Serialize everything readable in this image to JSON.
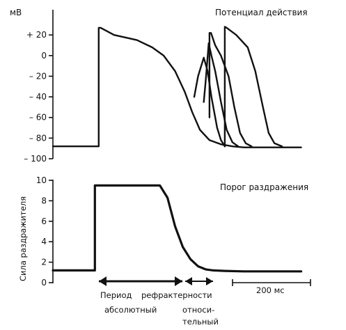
{
  "chart_data": [
    {
      "type": "line",
      "title": "Потенциал действия",
      "ylabel": "мВ",
      "ylim": [
        -100,
        35
      ],
      "yticks": [
        {
          "value": 20,
          "label": "+ 20"
        },
        {
          "value": 0,
          "label": "0"
        },
        {
          "value": -20,
          "label": "– 20"
        },
        {
          "value": -40,
          "label": "– 40"
        },
        {
          "value": -60,
          "label": "– 60"
        },
        {
          "value": -80,
          "label": "– 80"
        },
        {
          "value": -100,
          "label": "– 100"
        }
      ],
      "xlim": [
        0,
        700
      ],
      "grid": false,
      "series": [
        {
          "x": [
            0,
            120,
            120,
            125,
            160,
            220,
            260,
            290,
            320,
            345,
            365,
            385,
            410,
            440,
            470,
            500,
            560,
            650
          ],
          "y": [
            -88,
            -88,
            27,
            27,
            20,
            15,
            8,
            0,
            -15,
            -35,
            -55,
            -72,
            -82,
            -86,
            -88,
            -89,
            -89,
            -89
          ]
        },
        {
          "x": [
            370,
            380,
            395,
            405,
            415,
            430,
            440,
            450
          ],
          "y": [
            -40,
            -20,
            -2,
            -15,
            -40,
            -70,
            -82,
            -88
          ]
        },
        {
          "x": [
            395,
            400,
            408,
            415,
            425,
            440,
            455,
            470,
            485
          ],
          "y": [
            -45,
            -25,
            12,
            0,
            -15,
            -45,
            -72,
            -84,
            -88
          ]
        },
        {
          "x": [
            410,
            410,
            414,
            425,
            440,
            460,
            475,
            490,
            505,
            520
          ],
          "y": [
            -60,
            22,
            22,
            10,
            0,
            -20,
            -50,
            -75,
            -85,
            -88
          ]
        },
        {
          "x": [
            450,
            450,
            455,
            480,
            510,
            530,
            550,
            565,
            580,
            600
          ],
          "y": [
            -88,
            28,
            27,
            20,
            8,
            -15,
            -50,
            -75,
            -85,
            -88
          ]
        }
      ]
    },
    {
      "type": "line",
      "title": "Порог раздражения",
      "ylabel": "Сила раздражителя",
      "ylim": [
        0,
        10
      ],
      "yticks": [
        {
          "value": 10,
          "label": "10"
        },
        {
          "value": 8,
          "label": "8"
        },
        {
          "value": 6,
          "label": "6"
        },
        {
          "value": 4,
          "label": "4"
        },
        {
          "value": 2,
          "label": "2"
        },
        {
          "value": 0,
          "label": "0"
        }
      ],
      "xlim": [
        0,
        700
      ],
      "grid": false,
      "series": [
        {
          "x": [
            0,
            100,
            110,
            110,
            120,
            160,
            200,
            250,
            280,
            300,
            320,
            340,
            360,
            380,
            400,
            420,
            450,
            500,
            600,
            650
          ],
          "y": [
            1.2,
            1.2,
            1.2,
            9.5,
            9.5,
            9.5,
            9.5,
            9.5,
            9.5,
            8.3,
            5.5,
            3.5,
            2.3,
            1.6,
            1.3,
            1.2,
            1.15,
            1.1,
            1.1,
            1.1
          ]
        }
      ],
      "annotations": {
        "period": "Период",
        "refractoriness": "рефрактерности",
        "absolute": "абсолютный",
        "relative_line1": "относи-",
        "relative_line2": "тельный",
        "scale_bar": "200 мс"
      },
      "periods": [
        {
          "name": "absolute",
          "x": [
            110,
            300
          ]
        },
        {
          "name": "relative",
          "x": [
            300,
            345
          ]
        }
      ],
      "scale_bar_ms": 200
    }
  ]
}
